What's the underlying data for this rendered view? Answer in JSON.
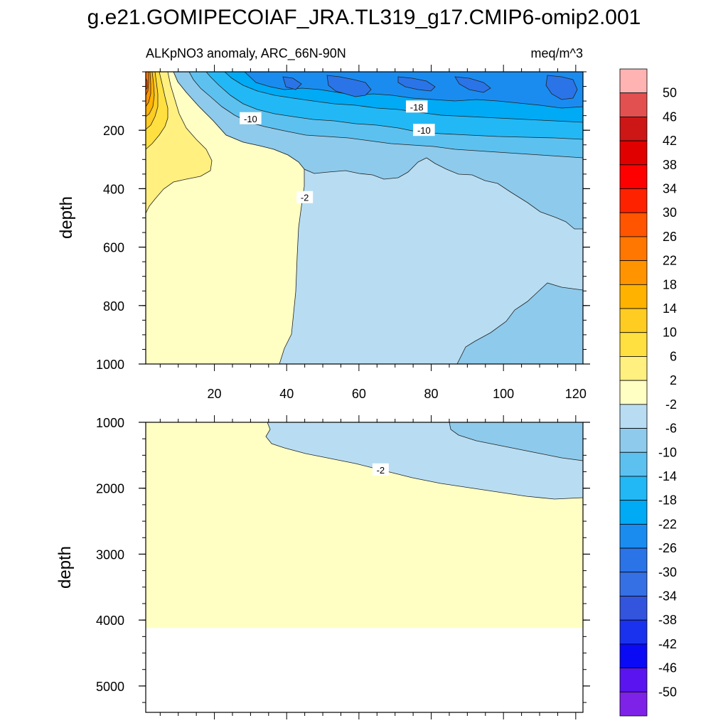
{
  "title": "g.e21.GOMIPECOIAF_JRA.TL319_g17.CMIP6-omip2.001",
  "chart_data": {
    "type": "contour",
    "variable_label": "ALKpNO3 anomaly, ARC_66N-90N",
    "units": "meq/m^3",
    "x_range": [
      1,
      122
    ],
    "x_ticks": [
      20,
      40,
      60,
      80,
      100,
      120
    ],
    "panels": [
      {
        "name": "upper",
        "ylabel": "depth",
        "ylim": [
          0,
          1000
        ],
        "y_ticks": [
          200,
          400,
          600,
          800,
          1000
        ],
        "contour_labels": [
          {
            "text": "-10",
            "x": 30,
            "depth": 160
          },
          {
            "text": "-18",
            "x": 76,
            "depth": 120
          },
          {
            "text": "-10",
            "x": 78,
            "depth": 200
          },
          {
            "text": "-2",
            "x": 45,
            "depth": 430
          }
        ]
      },
      {
        "name": "lower",
        "ylabel": "depth",
        "ylim": [
          1000,
          5400
        ],
        "y_ticks": [
          1000,
          2000,
          3000,
          4000,
          5000
        ],
        "data_bottom_depth": 4120,
        "contour_labels": [
          {
            "text": "-2",
            "x": 66,
            "depth": 1720
          }
        ]
      }
    ],
    "colorbar": {
      "labels": [
        "50",
        "46",
        "42",
        "38",
        "34",
        "30",
        "26",
        "22",
        "18",
        "14",
        "10",
        "6",
        "2",
        "-2",
        "-6",
        "-10",
        "-14",
        "-18",
        "-22",
        "-26",
        "-30",
        "-34",
        "-38",
        "-42",
        "-46",
        "-50"
      ],
      "colors": [
        "#FFB3B3",
        "#E35050",
        "#CD1616",
        "#E00000",
        "#FF0000",
        "#FF2200",
        "#FF5500",
        "#FF7700",
        "#FF9400",
        "#FFB300",
        "#FFCC22",
        "#FFE040",
        "#FFF080",
        "#FFFFC4",
        "#B8DDF2",
        "#8ECAEB",
        "#5DC1F0",
        "#22B8F5",
        "#00AAF5",
        "#1A8CF0",
        "#2A74E8",
        "#3570E5",
        "#3355DD",
        "#1A32EE",
        "#0A0AF5",
        "#5A14F0",
        "#7F22E8"
      ]
    },
    "field_colors": {
      "pos_2_6": "#FFF080",
      "pos_6_10": "#FFE040",
      "pos_10_14": "#FFCC22",
      "pos_14_18": "#FFB300",
      "pos_18_22": "#FF9400",
      "pos_22_26": "#FF7700",
      "pos_26_30": "#FF5500",
      "band_m2_2": "#FFFFC4",
      "band_m6_m2": "#B8DDF2",
      "band_m10_m6": "#8ECAEB",
      "band_m14_m10": "#5DC1F0",
      "band_m18_m14": "#22B8F5",
      "band_m22_m18": "#00AAF5",
      "band_m26_m22": "#1A8CF0",
      "band_m30_m26": "#2A74E8"
    }
  }
}
